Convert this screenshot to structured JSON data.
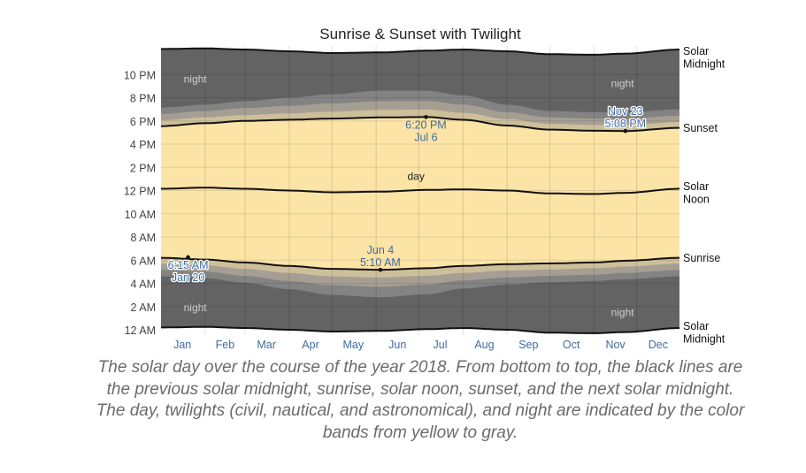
{
  "chart_data": {
    "type": "area",
    "title": "Sunrise & Sunset with Twilight",
    "xlabel": "",
    "ylabel": "",
    "months": [
      "Jan",
      "Feb",
      "Mar",
      "Apr",
      "May",
      "Jun",
      "Jul",
      "Aug",
      "Sep",
      "Oct",
      "Nov",
      "Dec"
    ],
    "x_range": [
      "Jan 1",
      "Dec 31"
    ],
    "y_range": [
      "12 AM",
      "next 12 AM"
    ],
    "y_ticks": [
      "12 AM",
      "2 AM",
      "4 AM",
      "6 AM",
      "8 AM",
      "10 AM",
      "12 PM",
      "2 PM",
      "4 PM",
      "6 PM",
      "8 PM",
      "10 PM"
    ],
    "right_labels": {
      "next_midnight": [
        "Solar",
        "Midnight"
      ],
      "sunset": "Sunset",
      "noon": [
        "Solar",
        "Noon"
      ],
      "sunrise": "Sunrise",
      "prev_midnight": [
        "Solar",
        "Midnight"
      ]
    },
    "band_labels": {
      "day": "day",
      "night_top_left": "night",
      "night_top_right": "night",
      "night_bottom_left": "night",
      "night_bottom_right": "night"
    },
    "grid": true,
    "series_points_hours": {
      "day_of_year": [
        1,
        32,
        60,
        91,
        121,
        155,
        187,
        213,
        244,
        274,
        305,
        327,
        365
      ],
      "prev_midnight": [
        0.2,
        0.25,
        0.15,
        0.0,
        -0.15,
        -0.1,
        0.05,
        0.15,
        0.0,
        -0.25,
        -0.3,
        -0.2,
        0.15
      ],
      "sunrise": [
        6.2,
        6.05,
        5.8,
        5.5,
        5.25,
        5.17,
        5.3,
        5.5,
        5.65,
        5.72,
        5.8,
        5.95,
        6.2
      ],
      "noon": [
        12.15,
        12.25,
        12.15,
        12.0,
        11.85,
        11.9,
        12.05,
        12.1,
        12.0,
        11.75,
        11.7,
        11.8,
        12.15
      ],
      "sunset": [
        17.55,
        17.8,
        18.0,
        18.1,
        18.2,
        18.3,
        18.33,
        18.1,
        17.6,
        17.25,
        17.15,
        17.13,
        17.4
      ],
      "next_midnight": [
        24.2,
        24.25,
        24.15,
        24.0,
        23.85,
        23.9,
        24.05,
        24.15,
        24.0,
        23.75,
        23.7,
        23.8,
        24.15
      ],
      "civil_dusk": [
        18.05,
        18.3,
        18.5,
        18.65,
        18.8,
        18.95,
        18.98,
        18.7,
        18.15,
        17.75,
        17.65,
        17.63,
        17.9
      ],
      "nautical_dusk": [
        18.6,
        18.85,
        19.1,
        19.3,
        19.5,
        19.7,
        19.72,
        19.4,
        18.75,
        18.3,
        18.2,
        18.18,
        18.45
      ],
      "astronomical_dusk": [
        19.15,
        19.4,
        19.7,
        20.0,
        20.3,
        20.6,
        20.6,
        20.2,
        19.4,
        18.85,
        18.75,
        18.73,
        19.0
      ],
      "civil_dawn": [
        5.7,
        5.55,
        5.25,
        4.9,
        4.6,
        4.5,
        4.65,
        4.9,
        5.1,
        5.2,
        5.3,
        5.45,
        5.7
      ],
      "nautical_dawn": [
        5.15,
        5.0,
        4.65,
        4.2,
        3.85,
        3.7,
        3.9,
        4.25,
        4.5,
        4.65,
        4.75,
        4.9,
        5.15
      ],
      "astronomical_dawn": [
        4.6,
        4.45,
        4.05,
        3.5,
        3.0,
        2.8,
        3.05,
        3.55,
        3.9,
        4.1,
        4.2,
        4.35,
        4.6
      ]
    },
    "annotations": [
      {
        "day_of_year": 20,
        "hours": 6.25,
        "lines": [
          "6:15 AM",
          "Jan 20"
        ],
        "style": "halo",
        "anchor": "below"
      },
      {
        "day_of_year": 155,
        "hours": 5.17,
        "lines": [
          "Jun 4",
          "5:10 AM"
        ],
        "style": "plain",
        "anchor": "above"
      },
      {
        "day_of_year": 187,
        "hours": 18.33,
        "lines": [
          "6:20 PM",
          "Jul 6"
        ],
        "style": "plain",
        "anchor": "below"
      },
      {
        "day_of_year": 327,
        "hours": 17.13,
        "lines": [
          "Nov 23",
          "5:08 PM"
        ],
        "style": "halo",
        "anchor": "above"
      }
    ],
    "colors": {
      "night": "#636363",
      "astronomical": "#838383",
      "nautical": "#a59f93",
      "civil": "#cdbf9a",
      "day": "#fce4a6",
      "line": "#111111",
      "axis_text": "#444444",
      "month_text": "#3f6da3",
      "annotation": "#3f6da3"
    }
  },
  "caption": "The solar day over the course of the year 2018. From bottom to top, the black lines are the previous solar midnight, sunrise, solar noon, sunset, and the next solar midnight. The day, twilights (civil, nautical, and astronomical), and night are indicated by the color bands from yellow to gray."
}
